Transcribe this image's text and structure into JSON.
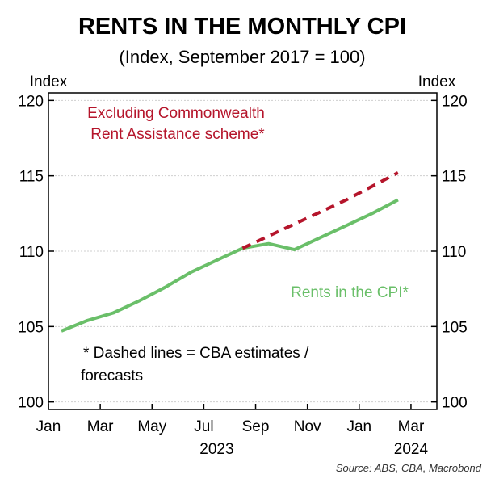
{
  "chart_data": {
    "type": "line",
    "title": "RENTS IN THE MONTHLY CPI",
    "subtitle": "(Index, September 2017 = 100)",
    "ylabel_left": "Index",
    "ylabel_right": "Index",
    "ylim": [
      99.5,
      120.5
    ],
    "yticks": [
      100,
      105,
      110,
      115,
      120
    ],
    "xlim": [
      0,
      15
    ],
    "xticks": [
      {
        "pos": 0,
        "label": "Jan"
      },
      {
        "pos": 2,
        "label": "Mar"
      },
      {
        "pos": 4,
        "label": "May"
      },
      {
        "pos": 6,
        "label": "Jul"
      },
      {
        "pos": 8,
        "label": "Sep"
      },
      {
        "pos": 10,
        "label": "Nov"
      },
      {
        "pos": 12,
        "label": "Jan"
      },
      {
        "pos": 14,
        "label": "Mar"
      }
    ],
    "year_labels": [
      {
        "pos": 6.5,
        "label": "2023"
      },
      {
        "pos": 14,
        "label": "2024"
      }
    ],
    "grid": true,
    "series": [
      {
        "name": "Rents in the CPI*",
        "color": "#6abf69",
        "style": "solid",
        "x": [
          0.5,
          1.5,
          2.5,
          3.5,
          4.5,
          5.5,
          6.5,
          7.5,
          8.5,
          9.5,
          10.5,
          11.5,
          12.5,
          13.5
        ],
        "values": [
          104.7,
          105.4,
          105.9,
          106.7,
          107.6,
          108.6,
          109.4,
          110.2,
          110.5,
          110.1,
          110.9,
          111.7,
          112.5,
          113.4
        ]
      },
      {
        "name": "Excluding Commonwealth Rent Assistance scheme*",
        "color": "#b5152b",
        "style": "dashed",
        "x": [
          7.5,
          8.5,
          9.5,
          10.5,
          11.5,
          12.5,
          13.5
        ],
        "values": [
          110.2,
          111.0,
          111.8,
          112.6,
          113.4,
          114.3,
          115.2
        ]
      }
    ],
    "annotations": {
      "dashed_label_line1": "Excluding Commonwealth",
      "dashed_label_line2": "Rent Assistance scheme*",
      "solid_label": "Rents in the CPI*",
      "note_line1": "*  Dashed lines = CBA estimates /",
      "note_line2": "forecasts"
    },
    "source": "Source: ABS, CBA, Macrobond"
  }
}
